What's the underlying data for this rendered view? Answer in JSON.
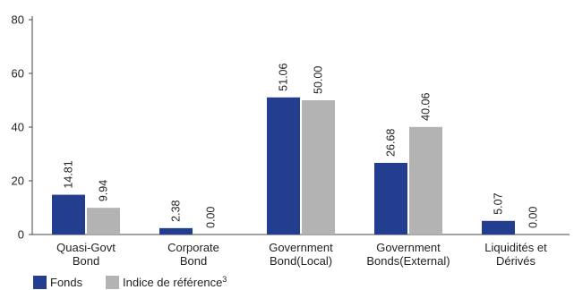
{
  "chart_data": {
    "type": "bar",
    "categories": [
      [
        "Quasi-Govt",
        "Bond"
      ],
      [
        "Corporate",
        "Bond"
      ],
      [
        "Government",
        "Bond(Local)"
      ],
      [
        "Government",
        "Bonds(External)"
      ],
      [
        "Liquidités et",
        "Dérivés"
      ]
    ],
    "series": [
      {
        "name": "Fonds",
        "color": "#233e8f",
        "values": [
          14.81,
          2.38,
          51.06,
          26.68,
          5.07
        ],
        "labels": [
          "14.81",
          "2.38",
          "51.06",
          "26.68",
          "5.07"
        ]
      },
      {
        "name": "Indice de référence",
        "superscript": "3",
        "color": "#b3b3b3",
        "values": [
          9.94,
          0.0,
          50.0,
          40.06,
          0.0
        ],
        "labels": [
          "9.94",
          "0.00",
          "50.00",
          "40.06",
          "0.00"
        ]
      }
    ],
    "ylim": [
      0,
      80
    ],
    "yticks": [
      0,
      20,
      40,
      60,
      80
    ],
    "legend": "bottom-left",
    "grid": false
  }
}
